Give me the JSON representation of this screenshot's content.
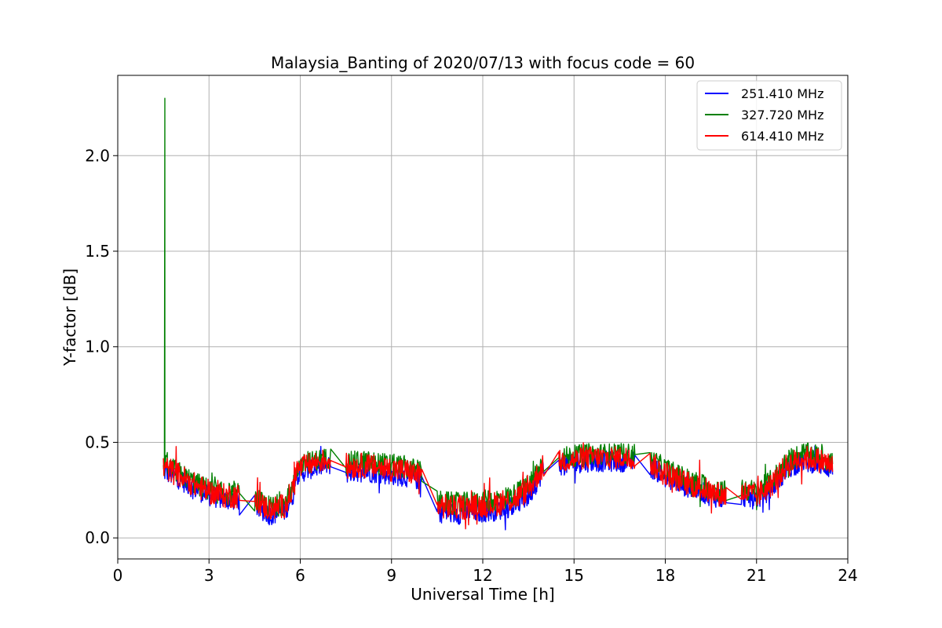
{
  "chart_data": {
    "type": "line",
    "title": "Malaysia_Banting of 2020/07/13 with focus code = 60",
    "xlabel": "Universal Time [h]",
    "ylabel": "Y-factor [dB]",
    "xlim": [
      0,
      24
    ],
    "ylim": [
      -0.11,
      2.42
    ],
    "xticks": [
      0,
      3,
      6,
      9,
      12,
      15,
      18,
      21,
      24
    ],
    "xtick_labels": [
      "0",
      "3",
      "6",
      "9",
      "12",
      "15",
      "18",
      "21",
      "24"
    ],
    "yticks": [
      0.0,
      0.5,
      1.0,
      1.5,
      2.0
    ],
    "ytick_labels": [
      "0.0",
      "0.5",
      "1.0",
      "1.5",
      "2.0"
    ],
    "grid": true,
    "legend_position": "top-right",
    "series": [
      {
        "name": "251.410 MHz",
        "color": "#0000ff",
        "segments": [
          {
            "x": [
              1.5,
              2.0,
              2.5,
              3.0,
              3.5,
              4.0
            ],
            "mean": [
              0.35,
              0.31,
              0.26,
              0.22,
              0.2,
              0.2
            ],
            "amp": 0.055
          },
          {
            "x": [
              4.5,
              5.0,
              5.5,
              5.8
            ],
            "mean": [
              0.17,
              0.12,
              0.14,
              0.24
            ],
            "amp": 0.055
          },
          {
            "x": [
              5.8,
              6.2,
              6.6,
              7.0
            ],
            "mean": [
              0.32,
              0.35,
              0.37,
              0.38
            ],
            "amp": 0.05
          },
          {
            "x": [
              7.5,
              8.0,
              8.5,
              9.0,
              9.5,
              10.0
            ],
            "mean": [
              0.34,
              0.35,
              0.34,
              0.33,
              0.32,
              0.3
            ],
            "amp": 0.055
          },
          {
            "x": [
              10.5,
              11.0,
              11.5,
              12.0,
              12.5,
              13.0,
              13.5,
              14.0
            ],
            "mean": [
              0.14,
              0.13,
              0.13,
              0.14,
              0.15,
              0.17,
              0.22,
              0.36
            ],
            "amp": 0.06
          },
          {
            "x": [
              14.5,
              15.0,
              15.5,
              16.0,
              16.5,
              17.0
            ],
            "mean": [
              0.38,
              0.39,
              0.4,
              0.4,
              0.4,
              0.4
            ],
            "amp": 0.055
          },
          {
            "x": [
              17.5,
              18.0,
              18.5,
              19.0,
              19.5,
              20.0
            ],
            "mean": [
              0.37,
              0.32,
              0.28,
              0.25,
              0.22,
              0.2
            ],
            "amp": 0.055
          },
          {
            "x": [
              20.5,
              21.0,
              21.5,
              22.0,
              22.5,
              23.0,
              23.5
            ],
            "mean": [
              0.22,
              0.2,
              0.26,
              0.36,
              0.4,
              0.39,
              0.36
            ],
            "amp": 0.055
          }
        ]
      },
      {
        "name": "327.720 MHz",
        "color": "#008000",
        "spike": {
          "x": 1.55,
          "y": 2.3
        },
        "segments": [
          {
            "x": [
              1.5,
              2.0,
              2.5,
              3.0,
              3.5,
              4.0
            ],
            "mean": [
              0.38,
              0.34,
              0.29,
              0.25,
              0.23,
              0.23
            ],
            "amp": 0.06
          },
          {
            "x": [
              4.5,
              5.0,
              5.5,
              5.8
            ],
            "mean": [
              0.2,
              0.16,
              0.18,
              0.28
            ],
            "amp": 0.06
          },
          {
            "x": [
              5.8,
              6.2,
              6.6,
              7.0
            ],
            "mean": [
              0.36,
              0.39,
              0.41,
              0.42
            ],
            "amp": 0.055
          },
          {
            "x": [
              7.5,
              8.0,
              8.5,
              9.0,
              9.5,
              10.0
            ],
            "mean": [
              0.39,
              0.4,
              0.39,
              0.38,
              0.37,
              0.34
            ],
            "amp": 0.06
          },
          {
            "x": [
              10.5,
              11.0,
              11.5,
              12.0,
              12.5,
              13.0,
              13.5,
              14.0
            ],
            "mean": [
              0.19,
              0.18,
              0.18,
              0.19,
              0.2,
              0.22,
              0.27,
              0.4
            ],
            "amp": 0.06
          },
          {
            "x": [
              14.5,
              15.0,
              15.5,
              16.0,
              16.5,
              17.0
            ],
            "mean": [
              0.42,
              0.43,
              0.44,
              0.44,
              0.44,
              0.44
            ],
            "amp": 0.055
          },
          {
            "x": [
              17.5,
              18.0,
              18.5,
              19.0,
              19.5,
              20.0
            ],
            "mean": [
              0.41,
              0.36,
              0.32,
              0.29,
              0.26,
              0.24
            ],
            "amp": 0.06
          },
          {
            "x": [
              20.5,
              21.0,
              21.5,
              22.0,
              22.5,
              23.0,
              23.5
            ],
            "mean": [
              0.26,
              0.24,
              0.3,
              0.4,
              0.44,
              0.43,
              0.4
            ],
            "amp": 0.06
          }
        ]
      },
      {
        "name": "614.410 MHz",
        "color": "#ff0000",
        "segments": [
          {
            "x": [
              1.5,
              2.0,
              2.5,
              3.0,
              3.5,
              4.0
            ],
            "mean": [
              0.37,
              0.33,
              0.28,
              0.24,
              0.22,
              0.22
            ],
            "amp": 0.065
          },
          {
            "x": [
              4.5,
              5.0,
              5.5,
              5.8
            ],
            "mean": [
              0.19,
              0.15,
              0.17,
              0.27
            ],
            "amp": 0.065
          },
          {
            "x": [
              5.8,
              6.2,
              6.6,
              7.0
            ],
            "mean": [
              0.35,
              0.38,
              0.4,
              0.41
            ],
            "amp": 0.06
          },
          {
            "x": [
              7.5,
              8.0,
              8.5,
              9.0,
              9.5,
              10.0
            ],
            "mean": [
              0.37,
              0.38,
              0.37,
              0.36,
              0.35,
              0.32
            ],
            "amp": 0.065
          },
          {
            "x": [
              10.5,
              11.0,
              11.5,
              12.0,
              12.5,
              13.0,
              13.5,
              14.0
            ],
            "mean": [
              0.17,
              0.16,
              0.16,
              0.17,
              0.18,
              0.2,
              0.25,
              0.38
            ],
            "amp": 0.065
          },
          {
            "x": [
              14.5,
              15.0,
              15.5,
              16.0,
              16.5,
              17.0
            ],
            "mean": [
              0.4,
              0.41,
              0.42,
              0.42,
              0.42,
              0.42
            ],
            "amp": 0.06
          },
          {
            "x": [
              17.5,
              18.0,
              18.5,
              19.0,
              19.5,
              20.0
            ],
            "mean": [
              0.39,
              0.34,
              0.3,
              0.27,
              0.24,
              0.22
            ],
            "amp": 0.065
          },
          {
            "x": [
              20.5,
              21.0,
              21.5,
              22.0,
              22.5,
              23.0,
              23.5
            ],
            "mean": [
              0.24,
              0.22,
              0.28,
              0.38,
              0.42,
              0.41,
              0.38
            ],
            "amp": 0.065
          }
        ]
      }
    ]
  }
}
